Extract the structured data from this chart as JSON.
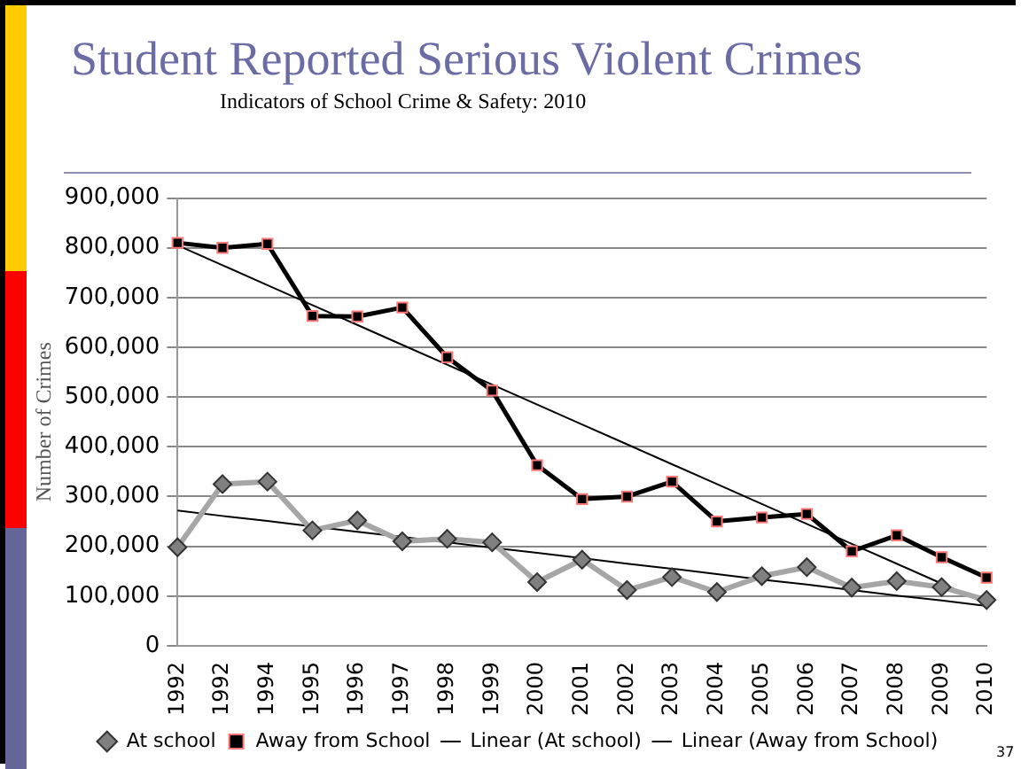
{
  "chart_data": {
    "type": "line",
    "title": "Student Reported Serious Violent Crimes",
    "subtitle": "Indicators of School Crime & Safety: 2010",
    "ylabel": "Number of Crimes",
    "categories": [
      "1992",
      "1992",
      "1994",
      "1995",
      "1996",
      "1997",
      "1998",
      "1999",
      "2000",
      "2001",
      "2002",
      "2003",
      "2004",
      "2005",
      "2006",
      "2007",
      "2008",
      "2009",
      "2010"
    ],
    "series": [
      {
        "name": "At school",
        "color": "#a6a6a6",
        "marker": "diamond",
        "values": [
          198000,
          325000,
          330000,
          232000,
          252000,
          210000,
          215000,
          208000,
          128000,
          173000,
          112000,
          138000,
          108000,
          140000,
          158000,
          117000,
          130000,
          118000,
          92000
        ]
      },
      {
        "name": "Away from School",
        "color": "#000000",
        "marker": "square",
        "values": [
          810000,
          800000,
          808000,
          663000,
          662000,
          680000,
          580000,
          513000,
          363000,
          295000,
          300000,
          330000,
          250000,
          258000,
          265000,
          190000,
          222000,
          178000,
          137000
        ]
      },
      {
        "name": "Linear (At school)",
        "color": "#000000",
        "marker": "none",
        "values": [
          272000,
          261000,
          251000,
          240000,
          229000,
          219000,
          208000,
          197000,
          187000,
          176000,
          165000,
          155000,
          144000,
          133000,
          123000,
          112000,
          101000,
          91000,
          80000
        ]
      },
      {
        "name": "Linear (Away from School)",
        "color": "#000000",
        "marker": "none",
        "values": [
          805000,
          765000,
          725000,
          685000,
          645000,
          605000,
          565000,
          525000,
          485000,
          445000,
          405000,
          365000,
          325000,
          285000,
          245000,
          205000,
          165000,
          125000,
          85000
        ]
      }
    ],
    "ylim": [
      0,
      900000
    ],
    "yticks": [
      {
        "value": 0,
        "label": "0"
      },
      {
        "value": 100000,
        "label": "100,000"
      },
      {
        "value": 200000,
        "label": "200,000"
      },
      {
        "value": 300000,
        "label": "300,000"
      },
      {
        "value": 400000,
        "label": "400,000"
      },
      {
        "value": 500000,
        "label": "500,000"
      },
      {
        "value": 600000,
        "label": "600,000"
      },
      {
        "value": 700000,
        "label": "700,000"
      },
      {
        "value": 800000,
        "label": "800,000"
      },
      {
        "value": 900000,
        "label": "900,000"
      }
    ],
    "grid": "y",
    "legend": "bottom",
    "line_style": "solid",
    "annotations": [
      "37"
    ]
  }
}
